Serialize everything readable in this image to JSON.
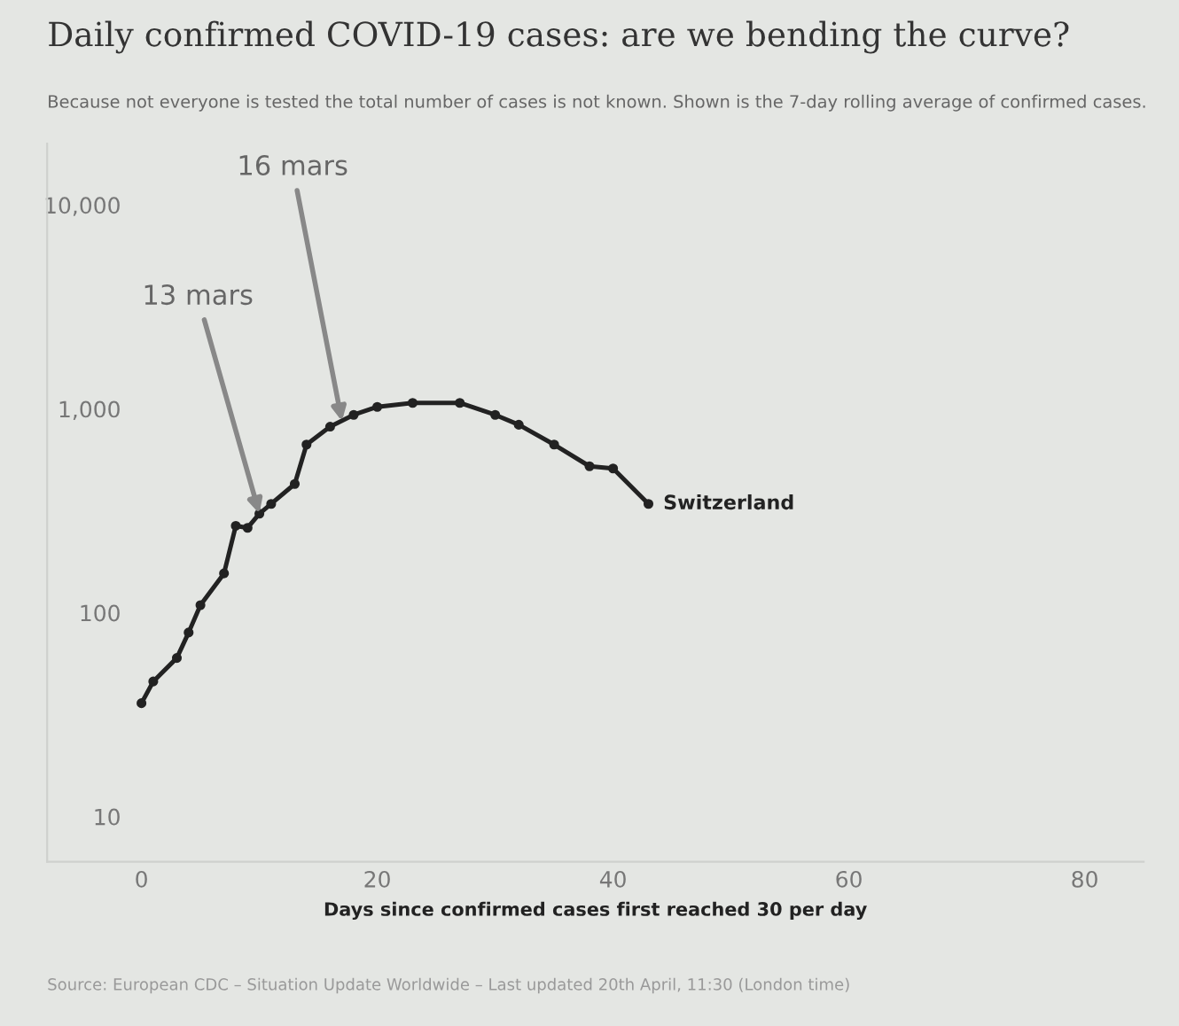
{
  "chart_data": {
    "type": "line",
    "title": "Daily confirmed COVID-19 cases: are we bending the curve?",
    "subtitle": "Because not everyone is tested the total number of cases is not known. Shown is the 7-day rolling average of confirmed cases.",
    "xlabel": "Days since confirmed cases first reached 30 per day",
    "series": [
      {
        "name": "Switzerland",
        "color": "#222222",
        "x": [
          0,
          1,
          3,
          4,
          5,
          7,
          8,
          9,
          10,
          11,
          13,
          14,
          16,
          18,
          20,
          23,
          27,
          30,
          32,
          35,
          38,
          40,
          43
        ],
        "values": [
          36,
          46,
          60,
          80,
          109,
          156,
          267,
          261,
          306,
          342,
          428,
          668,
          818,
          935,
          1023,
          1070,
          1070,
          935,
          836,
          668,
          523,
          510,
          342
        ]
      }
    ],
    "log": "y",
    "xlim": [
      -8,
      85
    ],
    "ylim": [
      6,
      20000
    ],
    "xticks": [
      0,
      20,
      40,
      60,
      80
    ],
    "yticks": [
      10,
      100,
      {
        "value": 1000,
        "label": "1,000"
      },
      {
        "value": 10000,
        "label": "10,000"
      }
    ],
    "grid": false,
    "legend": false,
    "marker": "circle",
    "line_style": "solid",
    "annotations": [
      {
        "text": "13 mars",
        "x": 10,
        "y": 306
      },
      {
        "text": "16 mars",
        "x": 17,
        "y": 870
      },
      "Source: European CDC – Situation Update Worldwide – Last updated 20th April, 11:30 (London time)"
    ]
  }
}
